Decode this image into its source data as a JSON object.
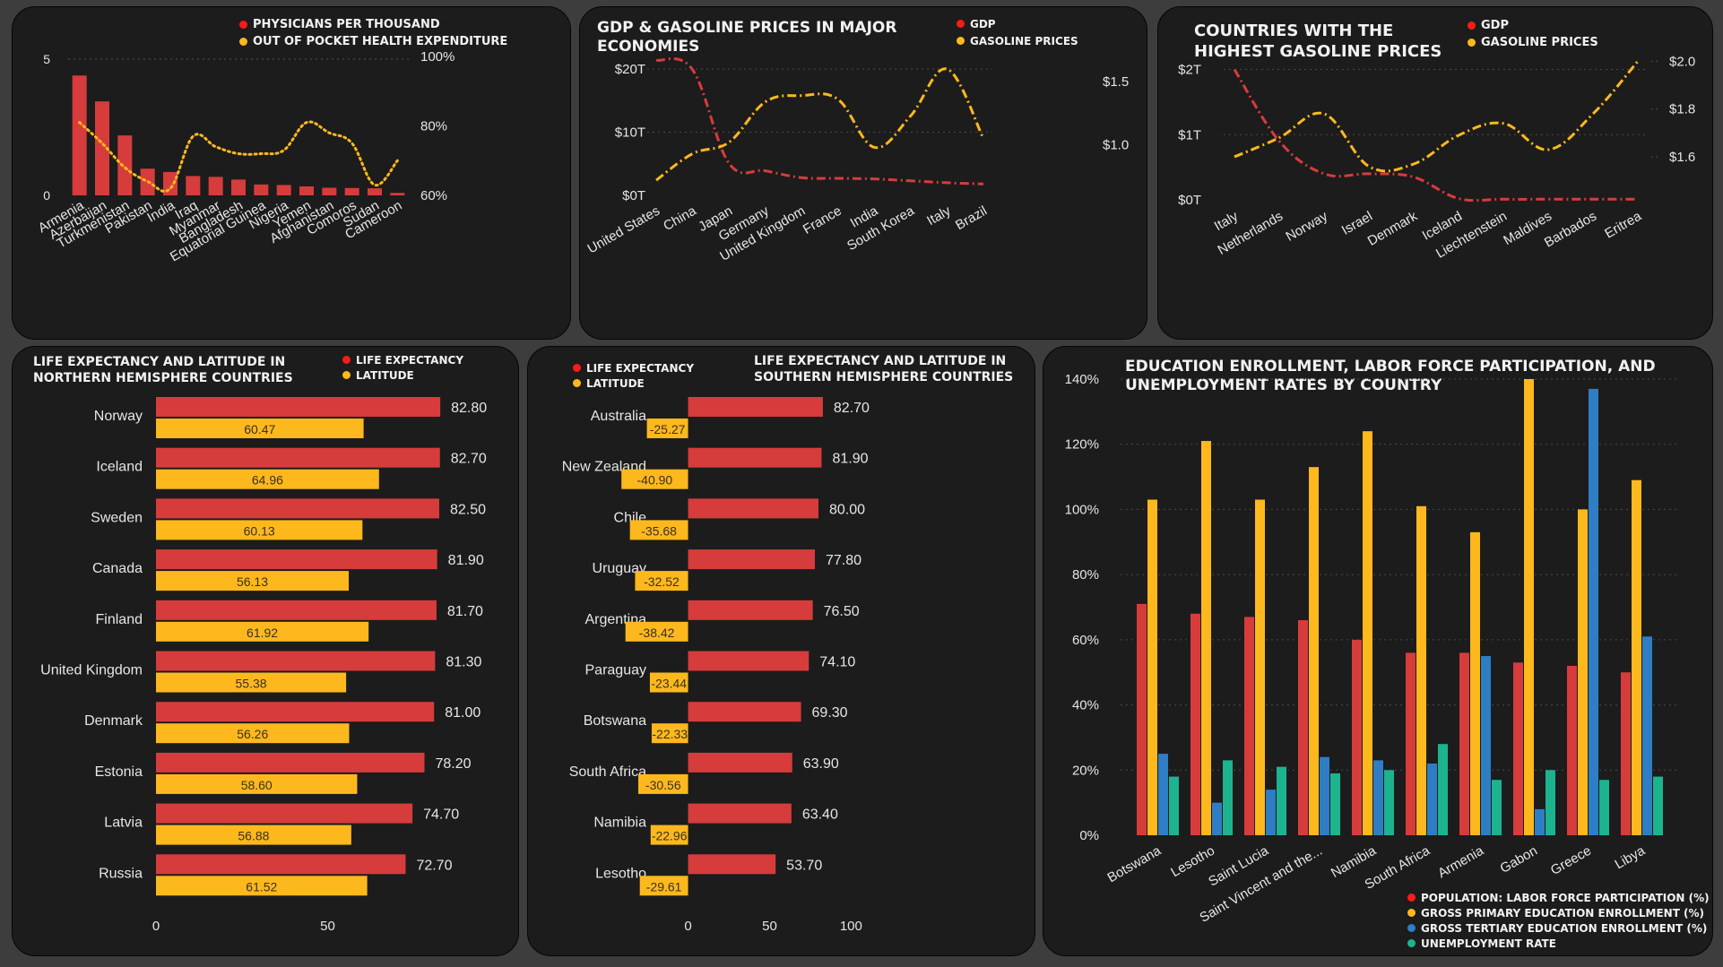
{
  "colors": {
    "red": "#d63c3c",
    "gold": "#fdb81e",
    "blue": "#2f7dc4",
    "teal": "#1db38f",
    "bg": "#1c1c1c",
    "page": "#3d3d3d",
    "legend_red": "#ff1a1a"
  },
  "panels": {
    "p1": {
      "title": "",
      "legend": [
        "PHYSICIANS PER THOUSAND",
        "OUT OF POCKET HEALTH EXPENDITURE"
      ]
    },
    "p2": {
      "title": "GDP & GASOLINE PRICES IN MAJOR\nECONOMIES",
      "legend": [
        "GDP",
        "GASOLINE PRICES"
      ]
    },
    "p3": {
      "title": "COUNTRIES WITH THE\nHIGHEST GASOLINE PRICES",
      "legend": [
        "GDP",
        "GASOLINE PRICES"
      ]
    },
    "p4": {
      "title": "LIFE EXPECTANCY AND LATITUDE IN\nNORTHERN  HEMISPHERE COUNTRIES",
      "legend": [
        "LIFE EXPECTANCY",
        "LATITUDE"
      ]
    },
    "p5": {
      "title": "LIFE EXPECTANCY AND LATITUDE IN\nSOUTHERN HEMISPHERE COUNTRIES",
      "legend": [
        "LIFE EXPECTANCY",
        "LATITUDE"
      ]
    },
    "p6": {
      "title": "EDUCATION ENROLLMENT, LABOR FORCE PARTICIPATION, AND\nUNEMPLOYMENT RATES BY COUNTRY",
      "legend": [
        "POPULATION: LABOR FORCE PARTICIPATION (%)",
        "GROSS PRIMARY EDUCATION ENROLLMENT (%)",
        "GROSS TERTIARY EDUCATION ENROLLMENT (%)",
        "UNEMPLOYMENT RATE"
      ]
    }
  },
  "chart_data": [
    {
      "id": "physicians",
      "type": "bar+line",
      "categories": [
        "Armenia",
        "Azerbaijan",
        "Turkmenistan",
        "Pakistan",
        "India",
        "Iraq",
        "Myanmar",
        "Bangladesh",
        "Equatorial Guinea",
        "Nigeria",
        "Yemen",
        "Afghanistan",
        "Comoros",
        "Sudan",
        "Cameroon"
      ],
      "series": [
        {
          "name": "PHYSICIANS PER THOUSAND",
          "type": "bar",
          "axis": "left",
          "values": [
            4.4,
            3.45,
            2.2,
            0.98,
            0.86,
            0.71,
            0.68,
            0.58,
            0.4,
            0.38,
            0.33,
            0.28,
            0.27,
            0.26,
            0.09
          ]
        },
        {
          "name": "OUT OF POCKET HEALTH EXPENDITURE",
          "type": "line",
          "axis": "right",
          "values": [
            81,
            75,
            68,
            64,
            62,
            77,
            74,
            72,
            72,
            73,
            81,
            78,
            75,
            63,
            70
          ]
        }
      ],
      "y_left": {
        "range": [
          0,
          5.1
        ],
        "ticks": [
          0,
          5
        ]
      },
      "y_right": {
        "range": [
          60,
          100
        ],
        "ticks": [
          60,
          80,
          100
        ],
        "tick_labels": [
          "60%",
          "80%",
          "100%"
        ]
      }
    },
    {
      "id": "gdp_gas_major",
      "type": "line",
      "categories": [
        "United States",
        "China",
        "Japan",
        "Germany",
        "United Kingdom",
        "France",
        "India",
        "South Korea",
        "Italy",
        "Brazil"
      ],
      "series": [
        {
          "name": "GDP",
          "axis": "left",
          "values": [
            21.4,
            19.9,
            5.1,
            3.9,
            2.8,
            2.7,
            2.6,
            2.3,
            2.0,
            1.8
          ]
        },
        {
          "name": "GASOLINE PRICES",
          "axis": "right",
          "values": [
            0.72,
            0.93,
            1.02,
            1.34,
            1.39,
            1.36,
            0.98,
            1.23,
            1.6,
            1.05
          ]
        }
      ],
      "y_left": {
        "range": [
          0,
          22
        ],
        "ticks": [
          0,
          10,
          20
        ],
        "tick_labels": [
          "$0T",
          "$10T",
          "$20T"
        ]
      },
      "y_right": {
        "range": [
          0.6,
          1.7
        ],
        "ticks": [
          1.0,
          1.5
        ],
        "tick_labels": [
          "$1.0",
          "$1.5"
        ]
      }
    },
    {
      "id": "highest_gas",
      "type": "line",
      "categories": [
        "Italy",
        "Netherlands",
        "Norway",
        "Israel",
        "Denmark",
        "Iceland",
        "Liechtenstein",
        "Maldives",
        "Barbados",
        "Eritrea"
      ],
      "series": [
        {
          "name": "GDP",
          "axis": "left",
          "values": [
            2.0,
            0.9,
            0.4,
            0.4,
            0.35,
            0.02,
            0.01,
            0.01,
            0.01,
            0.01
          ]
        },
        {
          "name": "GASOLINE PRICES",
          "axis": "right",
          "values": [
            1.6,
            1.68,
            1.78,
            1.56,
            1.57,
            1.69,
            1.74,
            1.63,
            1.78,
            2.0
          ]
        }
      ],
      "y_left": {
        "range": [
          0,
          2.2
        ],
        "ticks": [
          0,
          1,
          2
        ],
        "tick_labels": [
          "$0T",
          "$1T",
          "$2T"
        ]
      },
      "y_right": {
        "range": [
          1.42,
          2.02
        ],
        "ticks": [
          1.6,
          1.8,
          2.0
        ],
        "tick_labels": [
          "$1.6",
          "$1.8",
          "$2.0"
        ]
      }
    },
    {
      "id": "north_life",
      "type": "bar",
      "orientation": "horizontal",
      "categories": [
        "Norway",
        "Iceland",
        "Sweden",
        "Canada",
        "Finland",
        "United Kingdom",
        "Denmark",
        "Estonia",
        "Latvia",
        "Russia"
      ],
      "series": [
        {
          "name": "LIFE EXPECTANCY",
          "values": [
            82.8,
            82.7,
            82.5,
            81.9,
            81.7,
            81.3,
            81.0,
            78.2,
            74.7,
            72.7
          ],
          "labels": [
            "82.80",
            "82.70",
            "82.50",
            "81.90",
            "81.70",
            "81.30",
            "81.00",
            "78.20",
            "74.70",
            "72.70"
          ]
        },
        {
          "name": "LATITUDE",
          "values": [
            60.47,
            64.96,
            60.13,
            56.13,
            61.92,
            55.38,
            56.26,
            58.6,
            56.88,
            61.52
          ],
          "labels": [
            "60.47",
            "64.96",
            "60.13",
            "56.13",
            "61.92",
            "55.38",
            "56.26",
            "58.60",
            "56.88",
            "61.52"
          ]
        }
      ],
      "x_axis": {
        "range": [
          0,
          100
        ],
        "ticks": [
          0,
          50
        ],
        "tick_labels": [
          "0",
          "50"
        ]
      }
    },
    {
      "id": "south_life",
      "type": "bar",
      "orientation": "horizontal",
      "categories": [
        "Australia",
        "New Zealand",
        "Chile",
        "Uruguay",
        "Argentina",
        "Paraguay",
        "Botswana",
        "South Africa",
        "Namibia",
        "Lesotho"
      ],
      "series": [
        {
          "name": "LIFE EXPECTANCY",
          "values": [
            82.7,
            81.9,
            80.0,
            77.8,
            76.5,
            74.1,
            69.3,
            63.9,
            63.4,
            53.7
          ],
          "labels": [
            "82.70",
            "81.90",
            "80.00",
            "77.80",
            "76.50",
            "74.10",
            "69.30",
            "63.90",
            "63.40",
            "53.70"
          ]
        },
        {
          "name": "LATITUDE",
          "values": [
            -25.27,
            -40.9,
            -35.68,
            -32.52,
            -38.42,
            -23.44,
            -22.33,
            -30.56,
            -22.96,
            -29.61
          ],
          "labels": [
            "-25.27",
            "-40.90",
            "-35.68",
            "-32.52",
            "-38.42",
            "-23.44",
            "-22.33",
            "-30.56",
            "-22.96",
            "-29.61"
          ]
        }
      ],
      "x_axis": {
        "range": [
          -41,
          102
        ],
        "ticks": [
          0,
          50,
          100
        ],
        "tick_labels": [
          "0",
          "50",
          "100"
        ]
      }
    },
    {
      "id": "education",
      "type": "bar",
      "orientation": "vertical",
      "categories": [
        "Botswana",
        "Lesotho",
        "Saint Lucia",
        "Saint Vincent and the...",
        "Namibia",
        "South Africa",
        "Armenia",
        "Gabon",
        "Greece",
        "Libya"
      ],
      "series": [
        {
          "name": "POPULATION: LABOR FORCE PARTICIPATION (%)",
          "values": [
            71,
            68,
            67,
            66,
            60,
            56,
            56,
            53,
            52,
            50
          ]
        },
        {
          "name": "GROSS PRIMARY EDUCATION ENROLLMENT (%)",
          "values": [
            103,
            121,
            103,
            113,
            124,
            101,
            93,
            140,
            100,
            109
          ]
        },
        {
          "name": "GROSS TERTIARY EDUCATION ENROLLMENT (%)",
          "values": [
            25,
            10,
            14,
            24,
            23,
            22,
            55,
            8,
            137,
            61
          ]
        },
        {
          "name": "UNEMPLOYMENT RATE",
          "values": [
            18,
            23,
            21,
            19,
            20,
            28,
            17,
            20,
            17,
            18
          ]
        }
      ],
      "y_axis": {
        "range": [
          0,
          140
        ],
        "ticks": [
          0,
          20,
          40,
          60,
          80,
          100,
          120,
          140
        ],
        "tick_labels": [
          "0%",
          "20%",
          "40%",
          "60%",
          "80%",
          "100%",
          "120%",
          "140%"
        ]
      }
    }
  ]
}
